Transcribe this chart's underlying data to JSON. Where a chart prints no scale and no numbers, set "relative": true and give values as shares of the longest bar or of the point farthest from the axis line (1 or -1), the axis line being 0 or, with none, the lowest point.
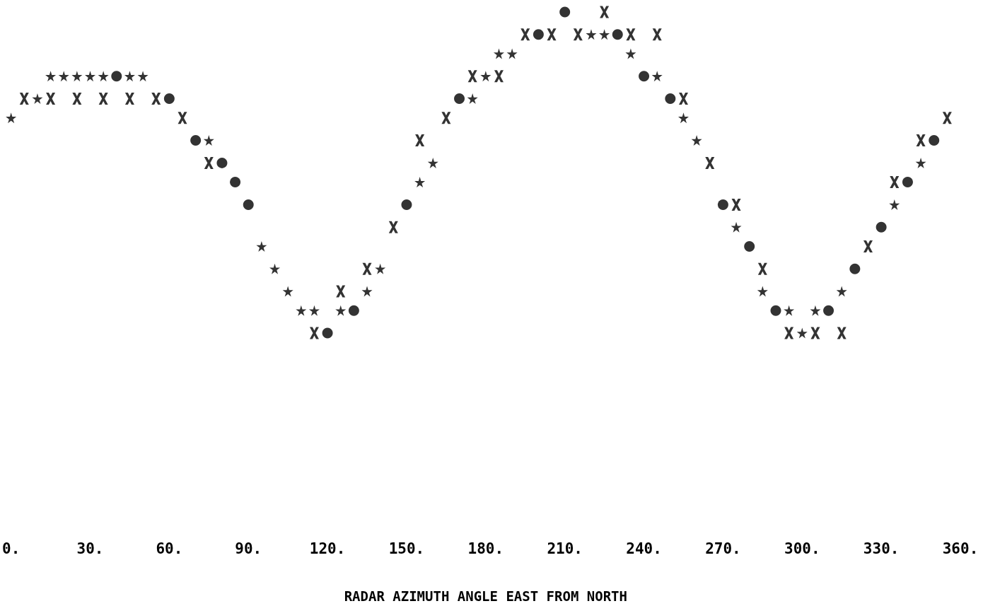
{
  "chart_data": {
    "type": "scatter",
    "xlabel": "RADAR AZIMUTH ANGLE EAST FROM NORTH",
    "relative": true,
    "grid": false,
    "tick_labels": "x",
    "xlim": [
      0,
      360
    ],
    "xticks": [
      {
        "value": 0,
        "label": "0."
      },
      {
        "value": 30,
        "label": "30."
      },
      {
        "value": 60,
        "label": "60."
      },
      {
        "value": 90,
        "label": "90."
      },
      {
        "value": 120,
        "label": "120."
      },
      {
        "value": 150,
        "label": "150."
      },
      {
        "value": 180,
        "label": "180."
      },
      {
        "value": 210,
        "label": "210."
      },
      {
        "value": 240,
        "label": "240."
      },
      {
        "value": 270,
        "label": "270."
      },
      {
        "value": 300,
        "label": "300."
      },
      {
        "value": 330,
        "label": "330."
      },
      {
        "value": 360,
        "label": "360."
      }
    ],
    "series": [
      {
        "color": "#000000",
        "marker": "cross",
        "x": [
          5,
          15,
          25,
          35,
          45,
          55,
          65,
          75,
          115,
          125,
          135,
          145,
          155,
          165,
          175,
          185,
          195,
          205,
          215,
          225,
          235,
          245,
          255,
          265,
          275,
          285,
          295,
          305,
          315,
          325,
          335,
          345,
          355
        ],
        "values": [
          0.73,
          0.73,
          0.73,
          0.73,
          0.73,
          0.73,
          0.67,
          0.53,
          0,
          0.13,
          0.2,
          0.33,
          0.6,
          0.67,
          0.8,
          0.8,
          0.93,
          0.93,
          0.93,
          1,
          0.93,
          0.93,
          0.73,
          0.53,
          0.4,
          0.2,
          0,
          0,
          0,
          0.27,
          0.47,
          0.6,
          0.67
        ]
      },
      {
        "color": "#000000",
        "marker": "star",
        "x": [
          0,
          10,
          15,
          20,
          25,
          30,
          35,
          45,
          50,
          75,
          95,
          100,
          105,
          110,
          115,
          125,
          135,
          140,
          155,
          160,
          175,
          180,
          185,
          190,
          220,
          225,
          235,
          245,
          255,
          260,
          275,
          285,
          295,
          300,
          305,
          315,
          335,
          345
        ],
        "values": [
          0.67,
          0.73,
          0.8,
          0.8,
          0.8,
          0.8,
          0.8,
          0.8,
          0.8,
          0.6,
          0.27,
          0.2,
          0.13,
          0.07,
          0.07,
          0.07,
          0.13,
          0.2,
          0.47,
          0.53,
          0.73,
          0.8,
          0.87,
          0.87,
          0.93,
          0.93,
          0.87,
          0.8,
          0.67,
          0.6,
          0.33,
          0.13,
          0.07,
          0,
          0.07,
          0.13,
          0.4,
          0.53
        ]
      },
      {
        "color": "#000000",
        "marker": "circle",
        "x": [
          40,
          60,
          70,
          80,
          85,
          90,
          120,
          130,
          150,
          170,
          200,
          210,
          230,
          240,
          250,
          270,
          280,
          290,
          310,
          320,
          330,
          340,
          350
        ],
        "values": [
          0.8,
          0.73,
          0.6,
          0.53,
          0.47,
          0.4,
          0,
          0.07,
          0.4,
          0.73,
          0.93,
          1,
          0.93,
          0.8,
          0.73,
          0.4,
          0.27,
          0.07,
          0.07,
          0.2,
          0.33,
          0.47,
          0.6
        ]
      }
    ]
  }
}
